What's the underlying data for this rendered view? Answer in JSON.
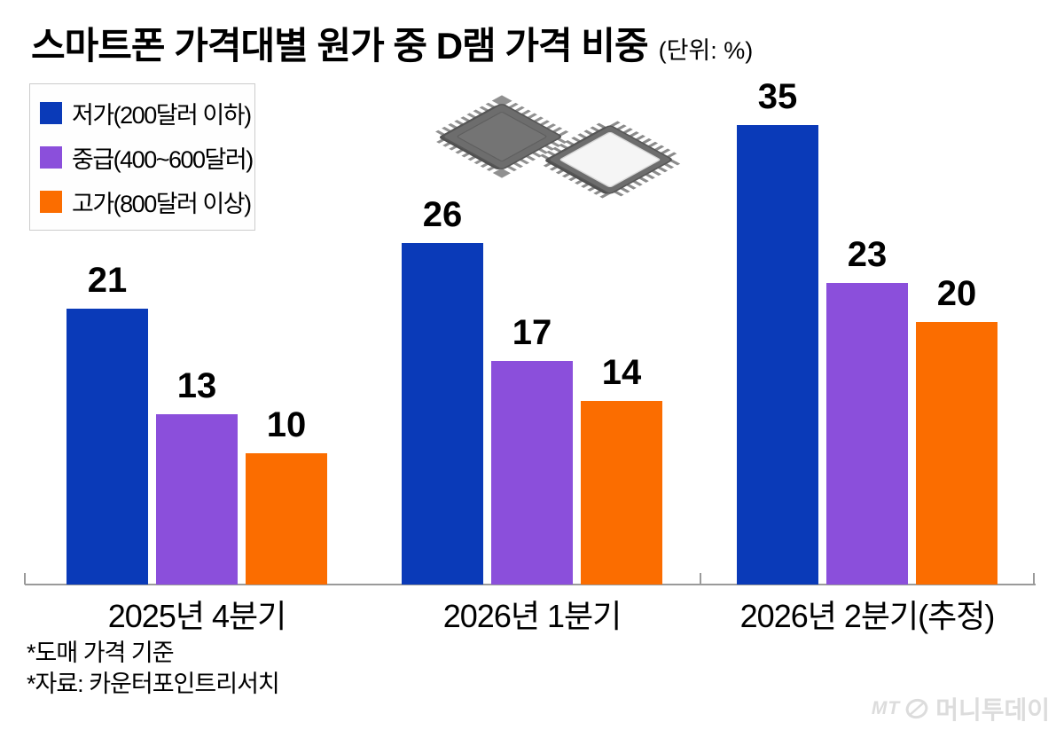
{
  "title": {
    "text": "스마트폰 가격대별 원가 중 D램 가격 비중",
    "unit": "(단위: %)"
  },
  "footnotes": [
    "*도매 가격 기준",
    "*자료: 카운터포인트리서치"
  ],
  "logo": {
    "mt": "MT",
    "brand": "머니투데이",
    "icon": "moneytoday-circle-logo"
  },
  "colors": {
    "low": "#0a3ab8",
    "mid": "#8b4fdb",
    "high": "#fb6d00",
    "axis": "#9a9a9a",
    "legend_border": "#cccccc",
    "logo_gray": "#dcdcdc"
  },
  "chart_data": {
    "type": "bar",
    "title": "스마트폰 가격대별 원가 중 D램 가격 비중",
    "unit": "(단위: %)",
    "categories": [
      "2025년 4분기",
      "2026년 1분기",
      "2026년 2분기(추정)"
    ],
    "series": [
      {
        "name": "저가(200달러 이하)",
        "color": "#0a3ab8",
        "values": [
          21,
          26,
          35
        ]
      },
      {
        "name": "중급(400~600달러)",
        "color": "#8b4fdb",
        "values": [
          13,
          17,
          23
        ]
      },
      {
        "name": "고가(800달러 이상)",
        "color": "#fb6d00",
        "values": [
          10,
          14,
          20
        ]
      }
    ],
    "ylim": [
      0,
      36
    ],
    "grid": false,
    "legend_position": "top-left",
    "value_labels": true,
    "xlabel": "",
    "ylabel": ""
  }
}
